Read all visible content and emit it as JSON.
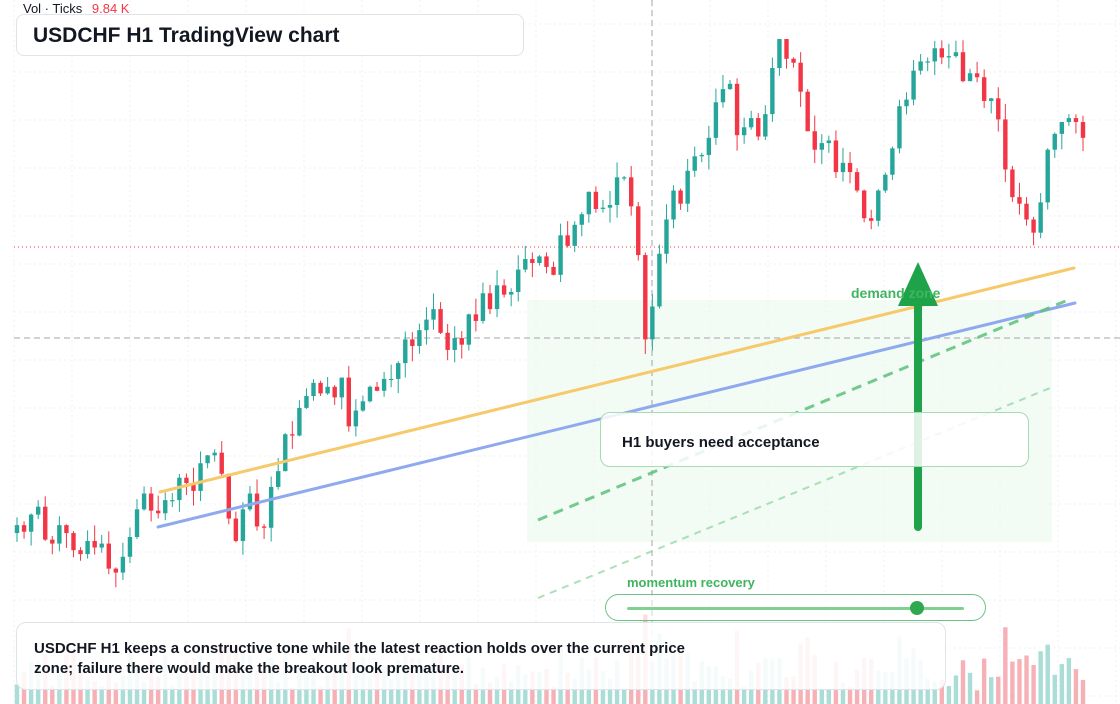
{
  "header": {
    "volume_label": "Vol · Ticks",
    "volume_value": "9.84 K"
  },
  "title": "USDCHF H1 TradingView chart",
  "annotations": {
    "zone_label": "demand zone",
    "callout": "H1 buyers need acceptance",
    "momentum_label": "momentum recovery",
    "momentum_level": 0.86,
    "summary": "USDCHF H1 keeps a constructive tone while the latest reaction holds over the current price zone; failure there would make the breakout look premature."
  },
  "colors": {
    "up": "#26a69a",
    "down": "#f23645",
    "accent_green": "#2fa84f",
    "trend_orange": "#f6c96b",
    "trend_blue": "#8fa9ef",
    "zone_fill": "#e9f7ec"
  },
  "chart_data": {
    "type": "candlestick",
    "title": "USDCHF H1 TradingView chart",
    "price_axis_visible": false,
    "grid": true,
    "bar_count": 152,
    "candles_close": [
      0.8812,
      0.8807,
      0.882,
      0.8826,
      0.8801,
      0.8798,
      0.8812,
      0.8806,
      0.8793,
      0.879,
      0.88,
      0.8795,
      0.8798,
      0.8779,
      0.8776,
      0.8788,
      0.8803,
      0.8824,
      0.8836,
      0.8823,
      0.8821,
      0.8831,
      0.8831,
      0.8848,
      0.8844,
      0.8838,
      0.8859,
      0.8865,
      0.8867,
      0.8851,
      0.8817,
      0.88,
      0.8824,
      0.8836,
      0.8811,
      0.881,
      0.8841,
      0.8853,
      0.8881,
      0.888,
      0.8901,
      0.891,
      0.892,
      0.8912,
      0.8917,
      0.8909,
      0.8924,
      0.8887,
      0.8899,
      0.8906,
      0.8917,
      0.8914,
      0.8923,
      0.8923,
      0.8935,
      0.8953,
      0.8948,
      0.896,
      0.8968,
      0.8976,
      0.8958,
      0.8945,
      0.8954,
      0.8949,
      0.8972,
      0.8967,
      0.8988,
      0.8976,
      0.8994,
      0.8987,
      0.8989,
      0.9006,
      0.9014,
      0.9011,
      0.9016,
      0.9008,
      0.9002,
      0.9032,
      0.9024,
      0.904,
      0.9048,
      0.9065,
      0.9052,
      0.9053,
      0.9055,
      0.9076,
      0.9076,
      0.9054,
      0.9017,
      0.8953,
      0.8978,
      0.9018,
      0.9044,
      0.9066,
      0.9056,
      0.9081,
      0.9092,
      0.9093,
      0.9106,
      0.9133,
      0.9143,
      0.9147,
      0.9108,
      0.9114,
      0.9121,
      0.9107,
      0.9124,
      0.9159,
      0.9181,
      0.9166,
      0.9163,
      0.9141,
      0.9111,
      0.9097,
      0.9102,
      0.9104,
      0.908,
      0.9087,
      0.908,
      0.9066,
      0.9045,
      0.9043,
      0.9066,
      0.9078,
      0.9098,
      0.913,
      0.9135,
      0.9157,
      0.9164,
      0.9164,
      0.9174,
      0.9167,
      0.9168,
      0.9171,
      0.9149,
      0.9155,
      0.9152,
      0.9134,
      0.9136,
      0.912,
      0.9082,
      0.9061,
      0.9056,
      0.9044,
      0.9034,
      0.9057,
      0.9097,
      0.9109,
      0.9118,
      0.9121,
      0.9118,
      0.9106
    ],
    "volume_scale": "Ticks"
  }
}
